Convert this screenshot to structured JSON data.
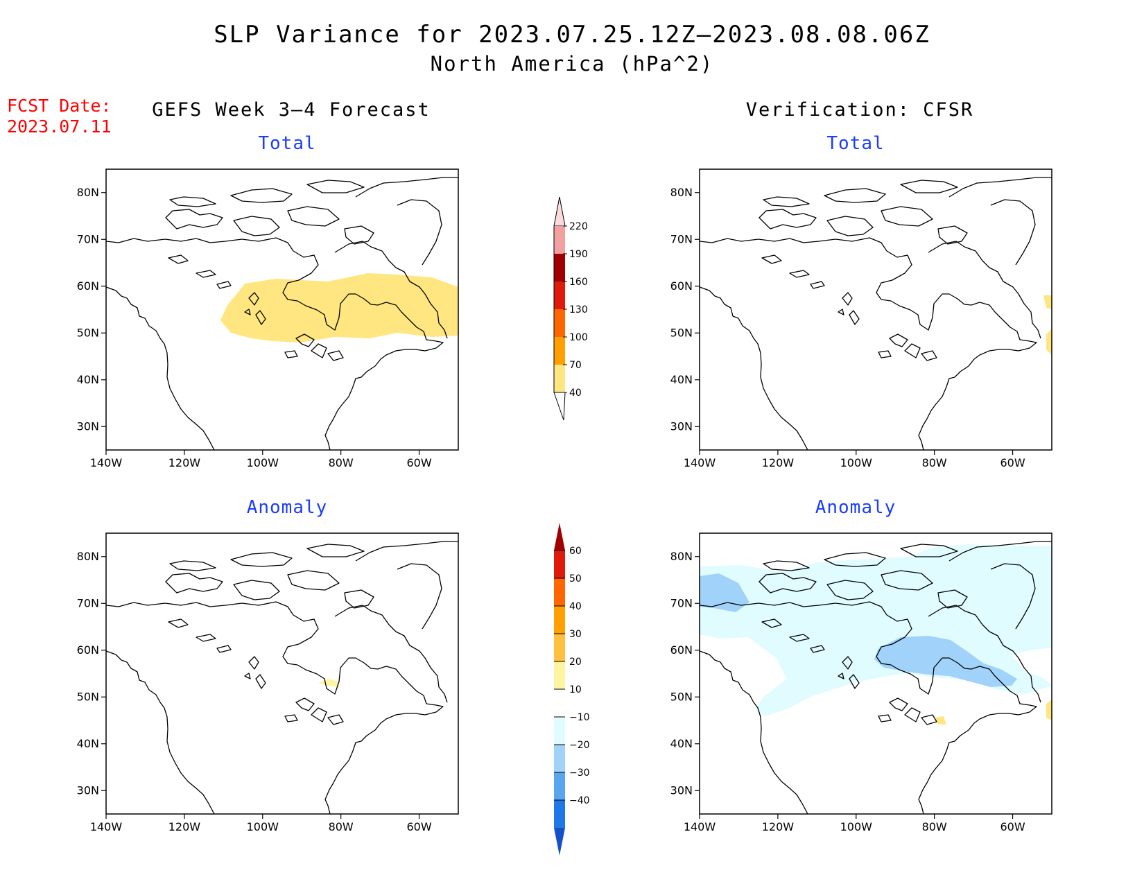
{
  "title": {
    "line1": "SLP Variance for 2023.07.25.12Z–2023.08.08.06Z",
    "line2": "North America (hPa^2)"
  },
  "forecast_date": {
    "label": "FCST Date:",
    "value": "2023.07.11"
  },
  "columns": [
    {
      "id": "left",
      "title": "GEFS Week 3–4 Forecast"
    },
    {
      "id": "right",
      "title": "Verification: CFSR"
    }
  ],
  "panels": [
    {
      "id": "fcst-total",
      "title": "Total"
    },
    {
      "id": "verif-total",
      "title": "Total"
    },
    {
      "id": "fcst-anomaly",
      "title": "Anomaly"
    },
    {
      "id": "verif-anomaly",
      "title": "Anomaly"
    }
  ],
  "map_axes": {
    "lat_ticks": [
      "80N",
      "70N",
      "60N",
      "50N",
      "40N",
      "30N"
    ],
    "lon_ticks": [
      "140W",
      "120W",
      "100W",
      "80W",
      "60W"
    ],
    "lat_range": [
      25,
      85
    ],
    "lon_range": [
      -140,
      -50
    ]
  },
  "colorbars": {
    "total": {
      "labels": [
        "220",
        "190",
        "160",
        "130",
        "100",
        "70",
        "40"
      ],
      "colors": [
        "#fadcdc",
        "#f2a0a0",
        "#a00000",
        "#e01a0a",
        "#ff6600",
        "#ffa000",
        "#ffe680"
      ]
    },
    "anomaly": {
      "labels": [
        "60",
        "50",
        "40",
        "30",
        "20",
        "10",
        "−10",
        "−20",
        "−30",
        "−40"
      ],
      "colors": [
        "#a00000",
        "#e01a0a",
        "#ff6600",
        "#ffa000",
        "#ffc040",
        "#fff5a0",
        "#ffffff",
        "#e0fcff",
        "#a0d2fa",
        "#5aa5f0",
        "#1e78e6",
        "#1450c8"
      ]
    }
  }
}
